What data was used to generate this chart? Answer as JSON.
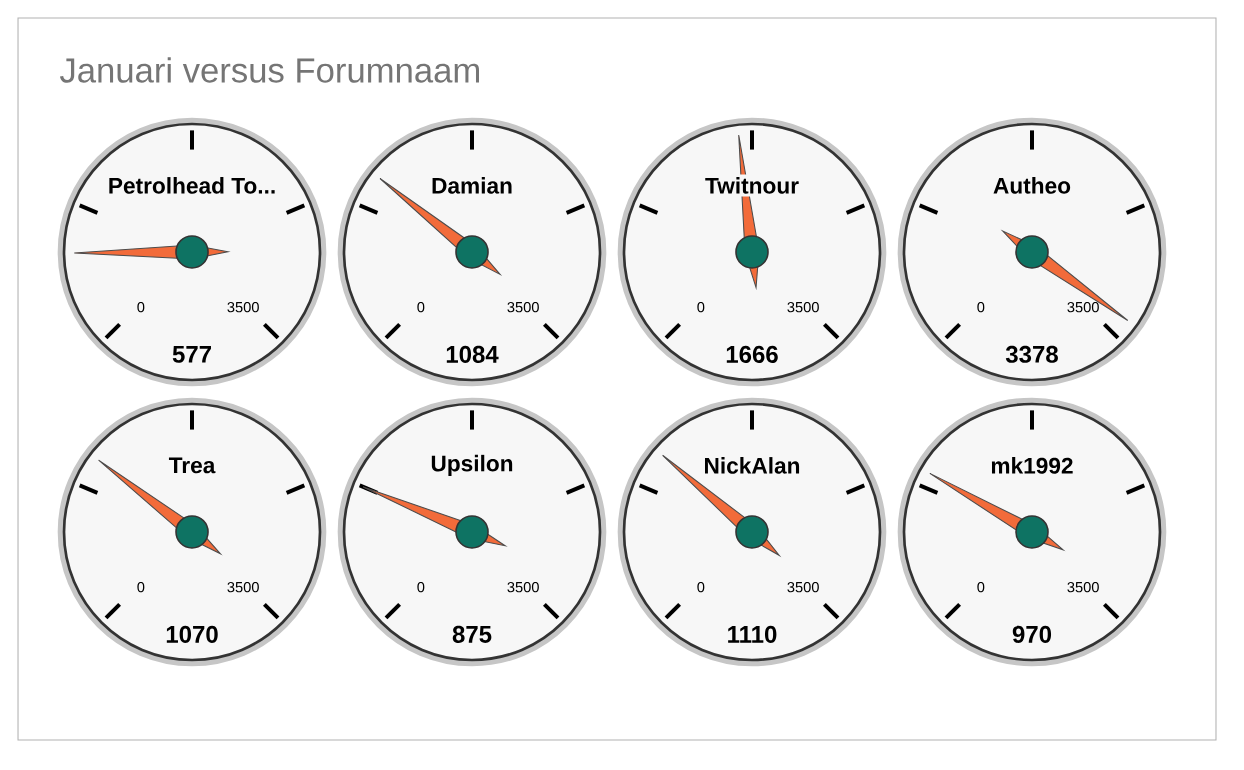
{
  "chart_data": [
    {
      "type": "other",
      "title": "Januari versus Forumnaam"
    },
    {
      "type": "other",
      "title": "Petrolhead To...",
      "values": [
        577
      ],
      "annotations": [
        "0",
        "3500"
      ],
      "data_labels": true
    },
    {
      "type": "other",
      "title": "Damian",
      "values": [
        1084
      ],
      "annotations": [
        "0",
        "3500"
      ],
      "data_labels": true
    },
    {
      "type": "other",
      "title": "Twitnour",
      "values": [
        1666
      ],
      "annotations": [
        "0",
        "3500"
      ],
      "data_labels": true
    },
    {
      "type": "other",
      "title": "Autheo",
      "values": [
        3378
      ],
      "annotations": [
        "0",
        "3500"
      ],
      "data_labels": true
    },
    {
      "type": "other",
      "title": "Trea",
      "values": [
        1070
      ],
      "annotations": [
        "0",
        "3500"
      ],
      "data_labels": true
    },
    {
      "type": "other",
      "title": "Upsilon",
      "values": [
        875
      ],
      "annotations": [
        "0",
        "3500"
      ],
      "data_labels": true
    },
    {
      "type": "other",
      "title": "NickAlan",
      "values": [
        1110
      ],
      "annotations": [
        "0",
        "3500"
      ],
      "data_labels": true
    },
    {
      "type": "other",
      "title": "mk1992",
      "values": [
        970
      ],
      "annotations": [
        "0",
        "3500"
      ],
      "data_labels": true
    }
  ]
}
